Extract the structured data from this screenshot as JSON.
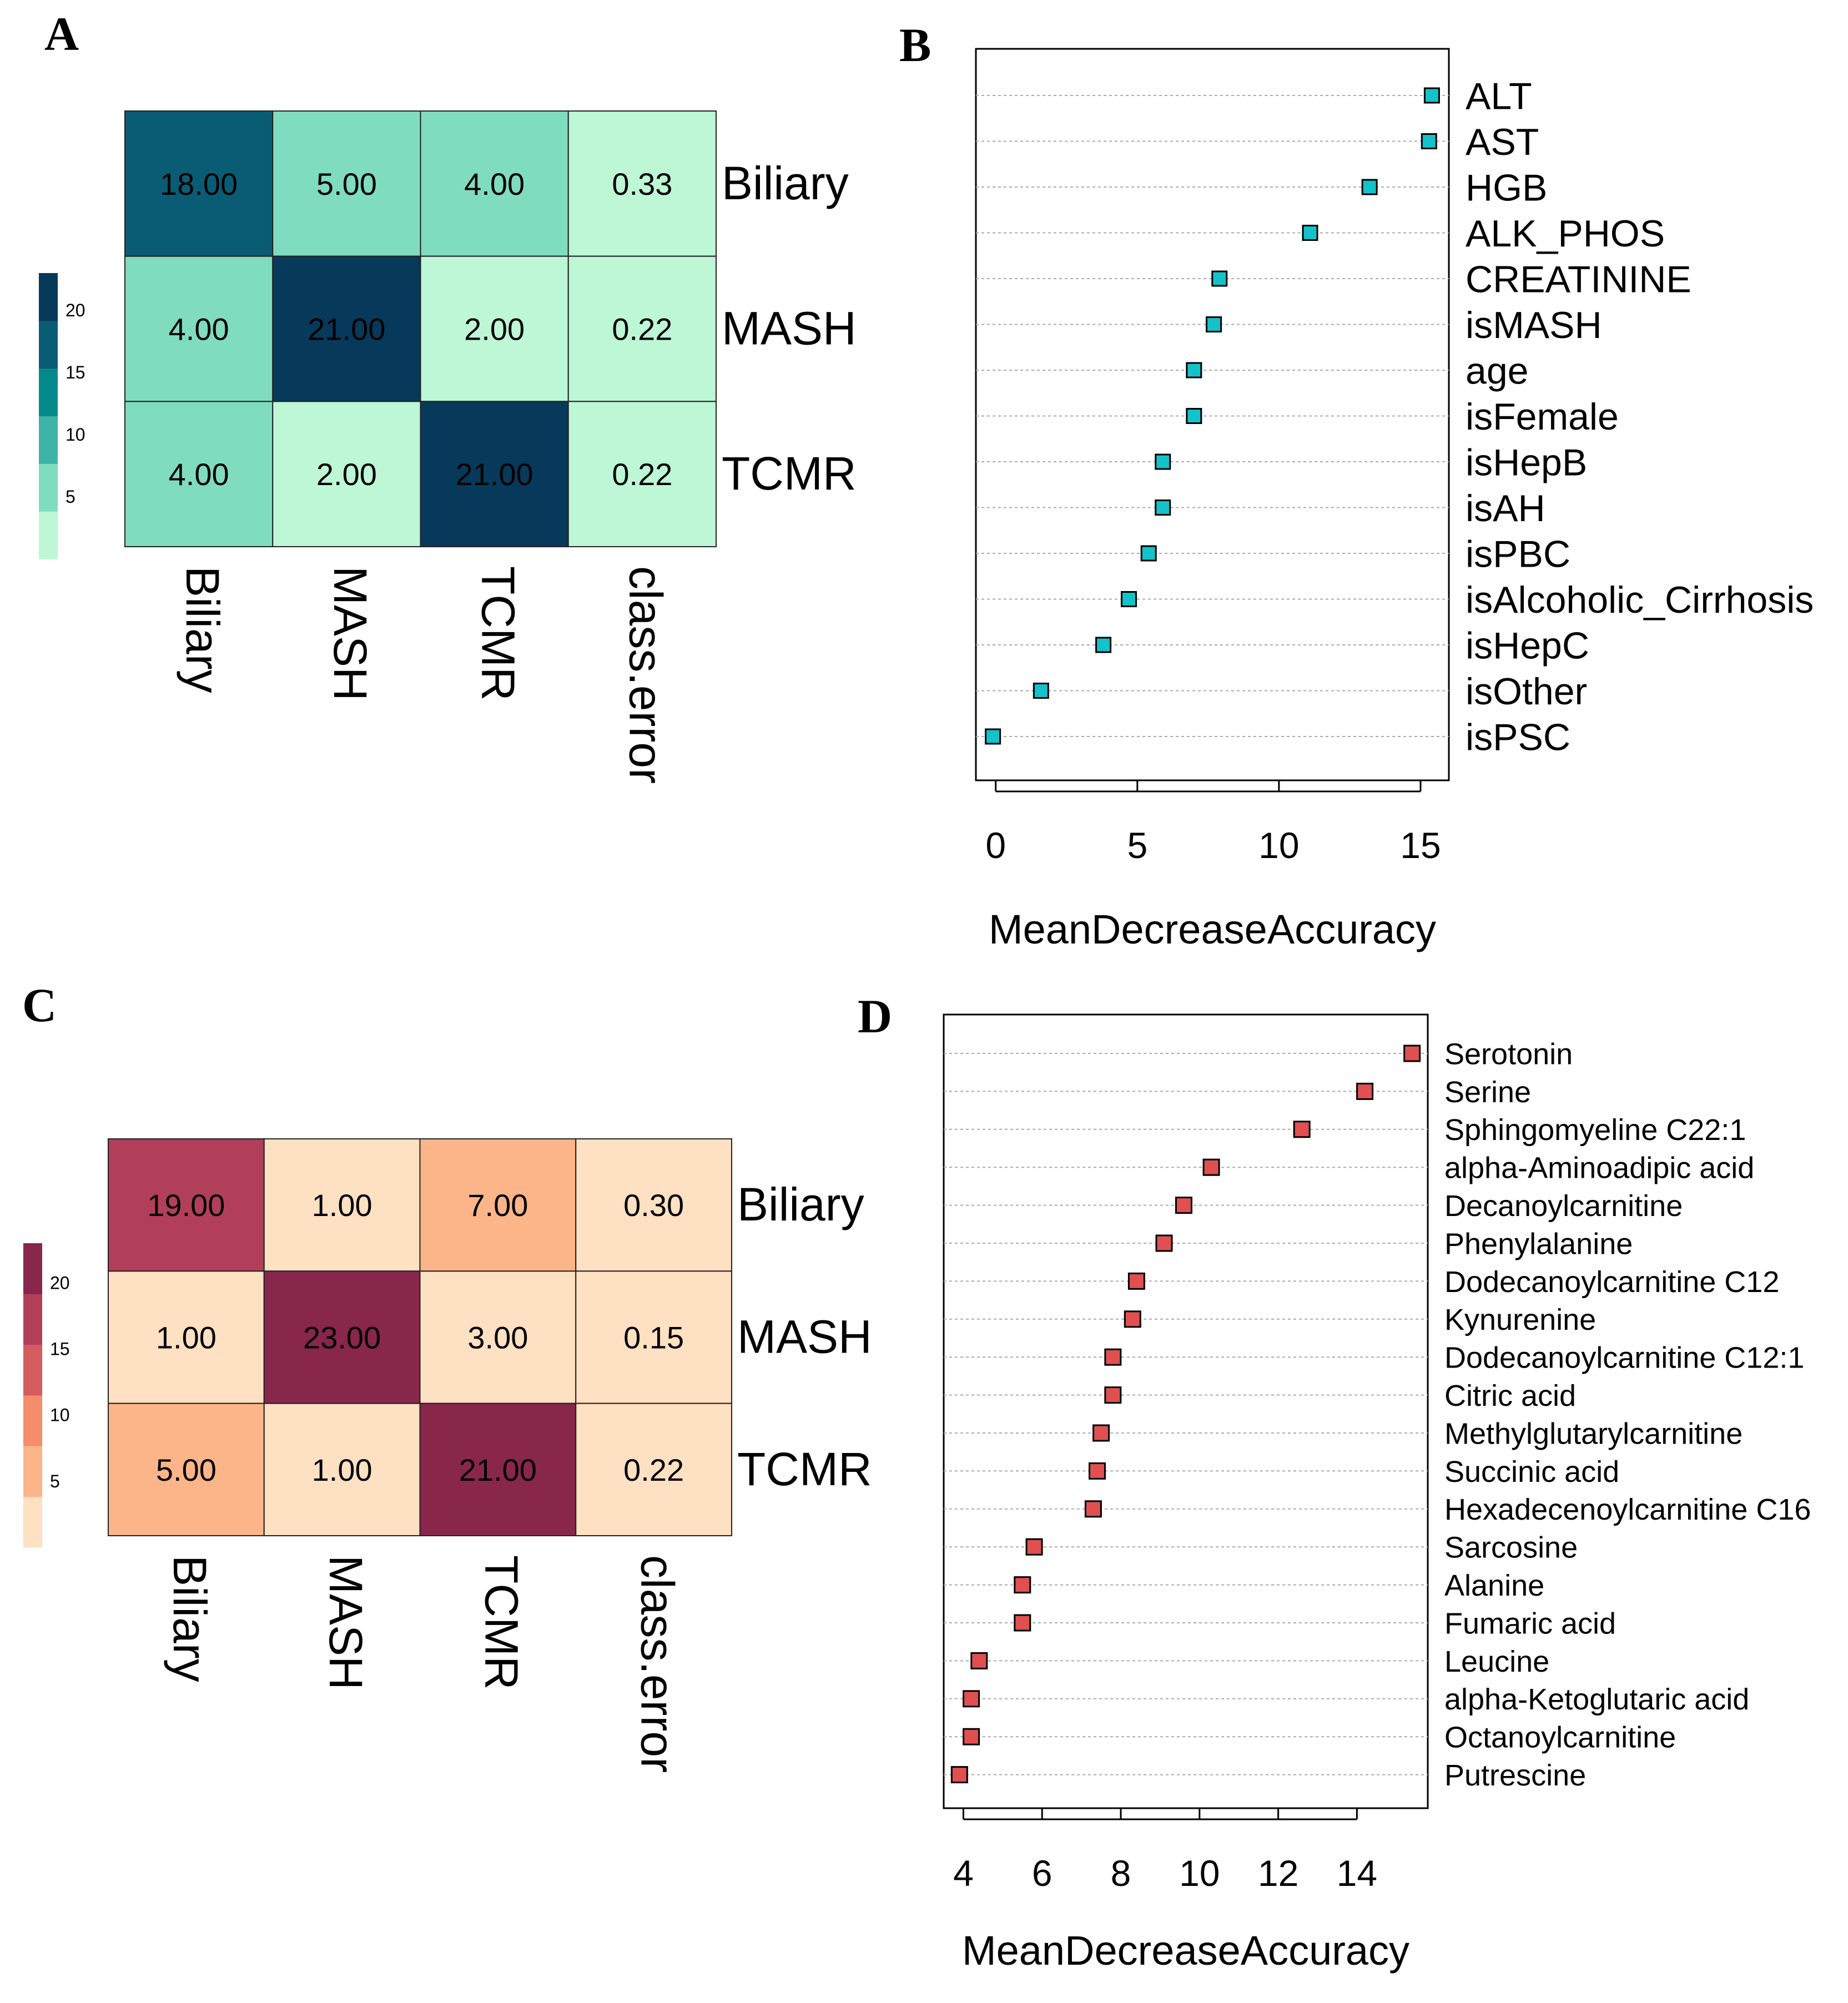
{
  "panels": {
    "A": "A",
    "B": "B",
    "C": "C",
    "D": "D"
  },
  "chart_data": [
    {
      "panel": "A",
      "type": "heatmap",
      "rows": [
        "Biliary",
        "MASH",
        "TCMR"
      ],
      "columns": [
        "Biliary",
        "MASH",
        "TCMR",
        "class.error"
      ],
      "labels": [
        [
          "18.00",
          "5.00",
          "4.00",
          "0.33"
        ],
        [
          "4.00",
          "21.00",
          "2.00",
          "0.22"
        ],
        [
          "4.00",
          "2.00",
          "21.00",
          "0.22"
        ]
      ],
      "values": [
        [
          18,
          5,
          4,
          0.33
        ],
        [
          4,
          21,
          2,
          0.22
        ],
        [
          4,
          2,
          21,
          0.22
        ]
      ],
      "colorscale": [
        "#bdf7d6",
        "#80dcbe",
        "#3fb3a8",
        "#058a8c",
        "#0a5c74",
        "#07395a"
      ],
      "legend_ticks": [
        "20",
        "15",
        "10",
        "5"
      ],
      "legend_range": [
        0,
        23
      ]
    },
    {
      "panel": "B",
      "type": "scatter",
      "variables": [
        "ALT",
        "AST",
        "HGB",
        "ALK_PHOS",
        "CREATININE",
        "isMASH",
        "age",
        "isFemale",
        "isHepB",
        "isAH",
        "isPBC",
        "isAlcoholic_Cirrhosis",
        "isHepC",
        "isOther",
        "isPSC"
      ],
      "values": [
        15.4,
        15.3,
        13.2,
        11.1,
        7.9,
        7.7,
        7.0,
        7.0,
        5.9,
        5.9,
        5.4,
        4.7,
        3.8,
        1.6,
        -0.1
      ],
      "xlabel": "MeanDecreaseAccuracy",
      "xticks": [
        0,
        5,
        10,
        15
      ],
      "xlim": [
        -0.7,
        16
      ],
      "marker_color": "#14c2c9"
    },
    {
      "panel": "C",
      "type": "heatmap",
      "rows": [
        "Biliary",
        "MASH",
        "TCMR"
      ],
      "columns": [
        "Biliary",
        "MASH",
        "TCMR",
        "class.error"
      ],
      "labels": [
        [
          "19.00",
          "1.00",
          "7.00",
          "0.30"
        ],
        [
          "1.00",
          "23.00",
          "3.00",
          "0.15"
        ],
        [
          "5.00",
          "1.00",
          "21.00",
          "0.22"
        ]
      ],
      "values": [
        [
          19,
          1,
          7,
          0.3
        ],
        [
          1,
          23,
          3,
          0.15
        ],
        [
          5,
          1,
          21,
          0.22
        ]
      ],
      "colorscale": [
        "#fee0c2",
        "#fcb589",
        "#f48d6a",
        "#d55d5f",
        "#b23f59",
        "#88264b"
      ],
      "legend_ticks": [
        "20",
        "15",
        "10",
        "5"
      ],
      "legend_range": [
        0,
        23
      ]
    },
    {
      "panel": "D",
      "type": "scatter",
      "variables": [
        "Serotonin",
        "Serine",
        "Sphingomyeline C22:1",
        "alpha-Aminoadipic acid",
        "Decanoylcarnitine",
        "Phenylalanine",
        "Dodecanoylcarnitine C12",
        "Kynurenine",
        "Dodecanoylcarnitine C12:1",
        "Citric acid",
        "Methylglutarylcarnitine",
        "Succinic acid",
        "Hexadecenoylcarnitine C16",
        "Sarcosine",
        "Alanine",
        "Fumaric acid",
        "Leucine",
        "alpha-Ketoglutaric acid",
        "Octanoylcarnitine",
        "Putrescine"
      ],
      "values": [
        15.4,
        14.2,
        12.6,
        10.3,
        9.6,
        9.1,
        8.4,
        8.3,
        7.8,
        7.8,
        7.5,
        7.4,
        7.3,
        5.8,
        5.5,
        5.5,
        4.4,
        4.2,
        4.2,
        3.9
      ],
      "xlabel": "MeanDecreaseAccuracy",
      "xticks": [
        4,
        6,
        8,
        10,
        12,
        14
      ],
      "xlim": [
        3.5,
        15.8
      ],
      "marker_color": "#e05050"
    }
  ]
}
